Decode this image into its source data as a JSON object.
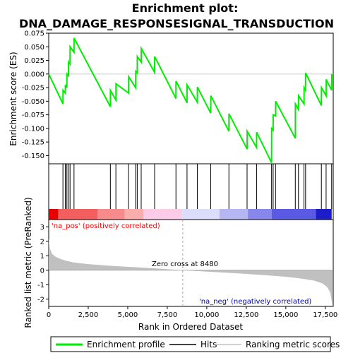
{
  "chart_data": {
    "type": "line",
    "title_line1": "Enrichment plot:",
    "title_line2": "DNA_DAMAGE_RESPONSESIGNAL_TRANSDUCTION",
    "xlabel": "Rank in Ordered Dataset",
    "ylabel_top": "Enrichment score (ES)",
    "ylabel_bottom": "Ranked list metric (PreRanked)",
    "xlim": [
      0,
      18000
    ],
    "x_ticks": [
      "0",
      "2,500",
      "5,000",
      "7,500",
      "10,000",
      "12,500",
      "15,000",
      "17,500"
    ],
    "x_tick_values": [
      0,
      2500,
      5000,
      7500,
      10000,
      12500,
      15000,
      17500
    ],
    "es_ylim": [
      -0.165,
      0.075
    ],
    "es_ticks": [
      "0.075",
      "0.050",
      "0.025",
      "0.000",
      "-0.025",
      "-0.050",
      "-0.075",
      "-0.100",
      "-0.125",
      "-0.150"
    ],
    "es_tick_values": [
      0.075,
      0.05,
      0.025,
      0.0,
      -0.025,
      -0.05,
      -0.075,
      -0.1,
      -0.125,
      -0.15
    ],
    "metric_ylim": [
      -2.5,
      3.5
    ],
    "metric_ticks": [
      "3",
      "2",
      "1",
      "0",
      "-1",
      "-2"
    ],
    "metric_tick_values": [
      3,
      2,
      1,
      0,
      -1,
      -2
    ],
    "hits": [
      900,
      1050,
      1150,
      1250,
      1350,
      1600,
      3900,
      4250,
      5050,
      5500,
      5600,
      5850,
      6700,
      8050,
      8750,
      9400,
      10250,
      11400,
      12550,
      13150,
      14100,
      14200,
      14350,
      15600,
      15800,
      16150,
      16250,
      17250,
      17550,
      17900
    ],
    "es_curve": {
      "x": [
        0,
        900,
        905,
        1050,
        1055,
        1150,
        1155,
        1250,
        1255,
        1350,
        1355,
        1600,
        1605,
        3900,
        3905,
        4250,
        4255,
        5050,
        5055,
        5500,
        5505,
        5600,
        5605,
        5850,
        5855,
        6700,
        6705,
        8050,
        8055,
        8750,
        8755,
        9400,
        9405,
        10250,
        10255,
        11400,
        11405,
        12550,
        12555,
        13150,
        13155,
        14100,
        14105,
        14200,
        14205,
        14350,
        14355,
        15600,
        15605,
        15800,
        15805,
        16150,
        16155,
        16250,
        16255,
        17250,
        17255,
        17550,
        17555,
        17900,
        17905
      ],
      "y": [
        0.0,
        -0.055,
        -0.03,
        -0.035,
        -0.02,
        -0.025,
        0.0,
        -0.003,
        0.022,
        0.018,
        0.05,
        0.04,
        0.066,
        -0.06,
        -0.03,
        -0.048,
        -0.018,
        -0.035,
        -0.005,
        -0.025,
        0.005,
        0.002,
        0.032,
        0.022,
        0.047,
        0.003,
        0.032,
        -0.045,
        -0.013,
        -0.053,
        -0.02,
        -0.052,
        -0.024,
        -0.072,
        -0.04,
        -0.105,
        -0.073,
        -0.138,
        -0.105,
        -0.135,
        -0.107,
        -0.163,
        -0.1,
        -0.103,
        -0.075,
        -0.077,
        -0.05,
        -0.118,
        -0.055,
        -0.065,
        -0.04,
        -0.055,
        -0.025,
        -0.03,
        0.002,
        -0.058,
        -0.025,
        -0.04,
        -0.01,
        -0.03,
        0.0
      ]
    },
    "metric_profile": {
      "x": [
        0,
        80,
        200,
        400,
        700,
        1000,
        1500,
        2500,
        4000,
        6000,
        8480,
        10000,
        12000,
        13500,
        15000,
        16000,
        16800,
        17300,
        17600,
        17800,
        17950
      ],
      "y": [
        2.2,
        1.5,
        1.15,
        0.95,
        0.8,
        0.68,
        0.55,
        0.42,
        0.3,
        0.18,
        0.0,
        -0.1,
        -0.22,
        -0.33,
        -0.45,
        -0.58,
        -0.72,
        -0.9,
        -1.15,
        -1.5,
        -2.4
      ]
    },
    "zero_cross_label": "Zero cross at 8480",
    "zero_cross": 8480,
    "pos_label": "'na_pos' (positively correlated)",
    "neg_label": "'na_neg' (negatively correlated)",
    "colors": {
      "es_line": "#00ee00",
      "hit_line": "#000000",
      "metric_fill": "#c0c0c0",
      "pos_text": "#ff0000",
      "neg_text": "#0000cc"
    },
    "legend": [
      "Enrichment profile",
      "Hits",
      "Ranking metric scores"
    ]
  }
}
